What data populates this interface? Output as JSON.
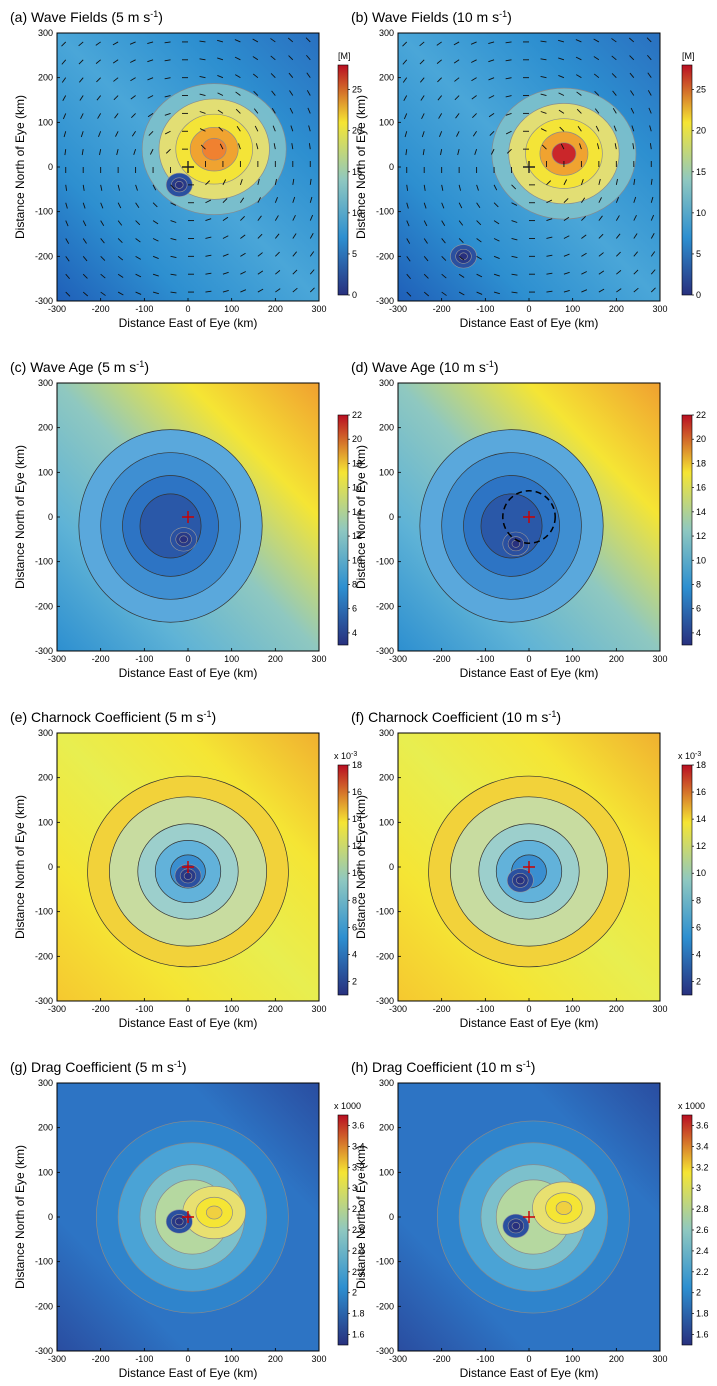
{
  "figure": {
    "x_axis_label": "Distance East of Eye (km)",
    "y_axis_label": "Distance North of Eye (km)",
    "axis_ticks": [
      "-300",
      "-200",
      "-100",
      "0",
      "100",
      "200",
      "300"
    ]
  },
  "colors": {
    "low": "#28307e",
    "mid_low": "#2d8fd0",
    "mid": "#8fc8c0",
    "mid_high": "#f5e534",
    "high": "#b80e22"
  },
  "chart_data": [
    {
      "type": "heatmap",
      "panel": "(a)",
      "title": "Wave Fields (5 m s",
      "title_exponent": "-1",
      "xlabel": "Distance East of Eye (km)",
      "ylabel": "Distance North of Eye (km)",
      "xlim": [
        -300,
        300
      ],
      "ylim": [
        -300,
        300
      ],
      "colorbar": {
        "unit": "[M]",
        "multiplier": "",
        "ticks": [
          "0",
          "5",
          "10",
          "15",
          "20",
          "25"
        ],
        "min": 0,
        "max": 28
      },
      "max_center": [
        60,
        40
      ],
      "min_center": [
        -20,
        -40
      ],
      "vectors": true,
      "eye_marker": "+"
    },
    {
      "type": "heatmap",
      "panel": "(b)",
      "title": "Wave Fields (10 m s",
      "title_exponent": "-1",
      "xlabel": "Distance East of Eye (km)",
      "ylabel": "Distance North of Eye (km)",
      "xlim": [
        -300,
        300
      ],
      "ylim": [
        -300,
        300
      ],
      "colorbar": {
        "unit": "[M]",
        "multiplier": "",
        "ticks": [
          "0",
          "5",
          "10",
          "15",
          "20",
          "25"
        ],
        "min": 0,
        "max": 28
      },
      "max_center": [
        80,
        30
      ],
      "min_center": [
        -150,
        -200
      ],
      "vectors": true,
      "eye_marker": "+"
    },
    {
      "type": "heatmap",
      "panel": "(c)",
      "title": "Wave Age (5 m s",
      "title_exponent": "-1",
      "xlabel": "Distance East of Eye (km)",
      "ylabel": "Distance North of Eye (km)",
      "xlim": [
        -300,
        300
      ],
      "ylim": [
        -300,
        300
      ],
      "colorbar": {
        "unit": "",
        "multiplier": "",
        "ticks": [
          "4",
          "6",
          "8",
          "10",
          "12",
          "14",
          "16",
          "18",
          "20",
          "22"
        ],
        "min": 3,
        "max": 22
      },
      "min_center": [
        -10,
        -50
      ]
    },
    {
      "type": "heatmap",
      "panel": "(d)",
      "title": "Wave Age (10 m s",
      "title_exponent": "-1",
      "xlabel": "Distance East of Eye (km)",
      "ylabel": "Distance North of Eye (km)",
      "xlim": [
        -300,
        300
      ],
      "ylim": [
        -300,
        300
      ],
      "colorbar": {
        "unit": "",
        "multiplier": "",
        "ticks": [
          "4",
          "6",
          "8",
          "10",
          "12",
          "14",
          "16",
          "18",
          "20",
          "22"
        ],
        "min": 3,
        "max": 22
      },
      "min_center": [
        -30,
        -60
      ],
      "dashed_circle_km": 60
    },
    {
      "type": "heatmap",
      "panel": "(e)",
      "title": "Charnock Coefficient (5 m s",
      "title_exponent": "-1",
      "xlabel": "Distance East of Eye (km)",
      "ylabel": "Distance North of Eye (km)",
      "xlim": [
        -300,
        300
      ],
      "ylim": [
        -300,
        300
      ],
      "colorbar": {
        "unit": "",
        "multiplier": "x 10",
        "multiplier_exp": "-3",
        "ticks": [
          "2",
          "4",
          "6",
          "8",
          "10",
          "12",
          "14",
          "16",
          "18"
        ],
        "min": 1,
        "max": 18
      },
      "min_center": [
        0,
        -20
      ]
    },
    {
      "type": "heatmap",
      "panel": "(f)",
      "title": "Charnock Coefficient (10 m s",
      "title_exponent": "-1",
      "xlabel": "Distance East of Eye (km)",
      "ylabel": "Distance North of Eye (km)",
      "xlim": [
        -300,
        300
      ],
      "ylim": [
        -300,
        300
      ],
      "colorbar": {
        "unit": "",
        "multiplier": "x 10",
        "multiplier_exp": "-3",
        "ticks": [
          "2",
          "4",
          "6",
          "8",
          "10",
          "12",
          "14",
          "16",
          "18"
        ],
        "min": 1,
        "max": 18
      },
      "min_center": [
        -20,
        -30
      ]
    },
    {
      "type": "heatmap",
      "panel": "(g)",
      "title": "Drag Coefficient (5 m s",
      "title_exponent": "-1",
      "xlabel": "Distance East of Eye (km)",
      "ylabel": "Distance North of Eye (km)",
      "xlim": [
        -300,
        300
      ],
      "ylim": [
        -300,
        300
      ],
      "colorbar": {
        "unit": "",
        "multiplier": "x 1000",
        "multiplier_exp": "",
        "ticks": [
          "1.6",
          "1.8",
          "2",
          "2.2",
          "2.4",
          "2.6",
          "2.8",
          "3",
          "3.2",
          "3.4",
          "3.6"
        ],
        "min": 1.5,
        "max": 3.7
      },
      "max_center": [
        60,
        10
      ],
      "min_center": [
        -20,
        -10
      ]
    },
    {
      "type": "heatmap",
      "panel": "(h)",
      "title": "Drag Coefficient (10 m s",
      "title_exponent": "-1",
      "xlabel": "Distance East of Eye (km)",
      "ylabel": "Distance North of Eye (km)",
      "xlim": [
        -300,
        300
      ],
      "ylim": [
        -300,
        300
      ],
      "colorbar": {
        "unit": "",
        "multiplier": "x 1000",
        "multiplier_exp": "",
        "ticks": [
          "1.6",
          "1.8",
          "2",
          "2.2",
          "2.4",
          "2.6",
          "2.8",
          "3",
          "3.2",
          "3.4",
          "3.6"
        ],
        "min": 1.5,
        "max": 3.7
      },
      "max_center": [
        80,
        20
      ],
      "min_center": [
        -30,
        -20
      ]
    }
  ]
}
